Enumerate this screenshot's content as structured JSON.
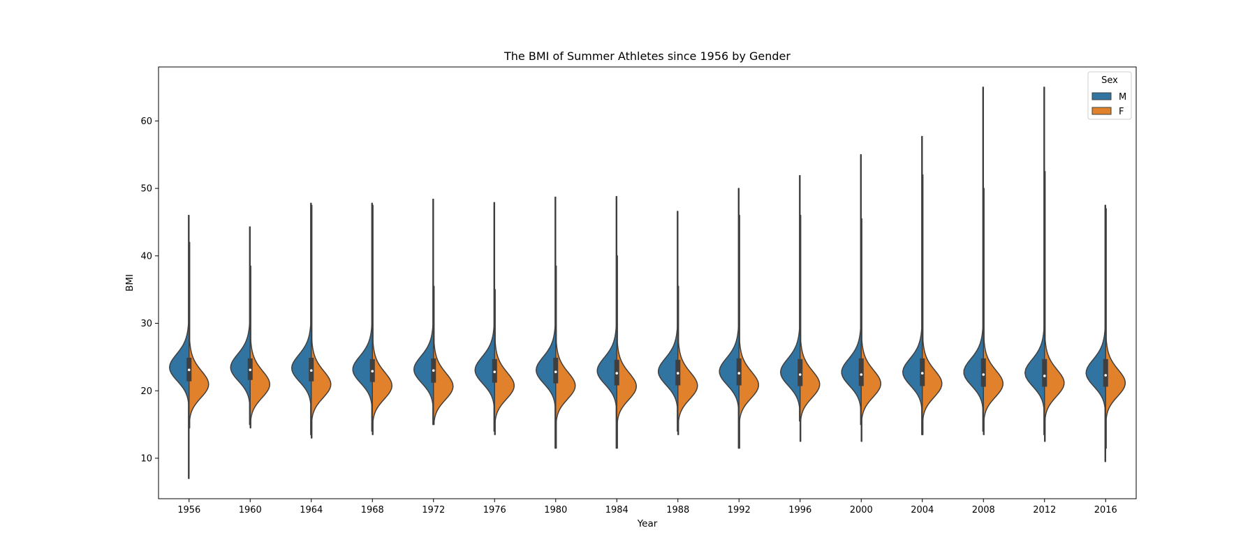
{
  "chart_data": {
    "type": "violin",
    "title": "The BMI of Summer Athletes since 1956 by Gender",
    "xlabel": "Year",
    "ylabel": "BMI",
    "ylim": [
      4,
      68
    ],
    "yticks": [
      10,
      20,
      30,
      40,
      50,
      60
    ],
    "grid": false,
    "split": true,
    "legend": {
      "title": "Sex",
      "placement": "top-right",
      "entries": [
        {
          "name": "M",
          "color": "#3274a1"
        },
        {
          "name": "F",
          "color": "#e1812c"
        }
      ]
    },
    "categories": [
      "1956",
      "1960",
      "1964",
      "1968",
      "1972",
      "1976",
      "1980",
      "1984",
      "1988",
      "1992",
      "1996",
      "2000",
      "2004",
      "2008",
      "2012",
      "2016"
    ],
    "series": [
      {
        "name": "M",
        "color": "#3274a1",
        "min": [
          7.0,
          15.0,
          13.5,
          14.0,
          15.0,
          14.0,
          11.5,
          11.5,
          14.0,
          11.5,
          15.5,
          15.0,
          13.5,
          14.0,
          13.5,
          9.5
        ],
        "max": [
          46.0,
          44.3,
          47.8,
          47.8,
          48.4,
          47.9,
          48.7,
          48.8,
          46.6,
          50.0,
          51.9,
          55.0,
          57.7,
          65.0,
          65.0,
          47.5
        ],
        "peak": [
          23.3,
          23.3,
          23.2,
          23.0,
          23.0,
          22.9,
          22.9,
          22.8,
          22.7,
          22.7,
          22.6,
          22.6,
          22.6,
          22.6,
          22.5,
          22.5
        ],
        "median": [
          23.1,
          23.1,
          23.0,
          22.9,
          23.0,
          22.8,
          22.8,
          22.6,
          22.6,
          22.6,
          22.4,
          22.4,
          22.6,
          22.4,
          22.2,
          22.3
        ],
        "q1": [
          21.4,
          21.6,
          21.4,
          21.3,
          21.2,
          21.2,
          21.1,
          20.8,
          20.8,
          20.8,
          20.7,
          20.7,
          20.7,
          20.6,
          20.6,
          20.6
        ],
        "q3": [
          24.9,
          24.8,
          24.9,
          24.7,
          24.8,
          24.7,
          24.9,
          24.6,
          24.6,
          24.8,
          24.7,
          24.8,
          24.8,
          24.8,
          24.7,
          24.7
        ]
      },
      {
        "name": "F",
        "color": "#e1812c",
        "min": [
          14.5,
          14.5,
          13.0,
          13.5,
          15.0,
          13.5,
          11.5,
          11.5,
          13.5,
          11.5,
          12.5,
          12.5,
          13.5,
          13.5,
          12.5,
          11.5
        ],
        "max": [
          42.0,
          38.5,
          47.5,
          47.5,
          35.5,
          35.0,
          38.5,
          40.0,
          35.5,
          46.0,
          46.0,
          45.5,
          52.0,
          50.0,
          52.5,
          47.0
        ],
        "peak": [
          20.8,
          20.8,
          20.8,
          20.6,
          20.5,
          20.6,
          20.6,
          20.5,
          20.6,
          20.7,
          20.8,
          20.9,
          20.9,
          20.9,
          21.0,
          21.0
        ]
      }
    ]
  }
}
